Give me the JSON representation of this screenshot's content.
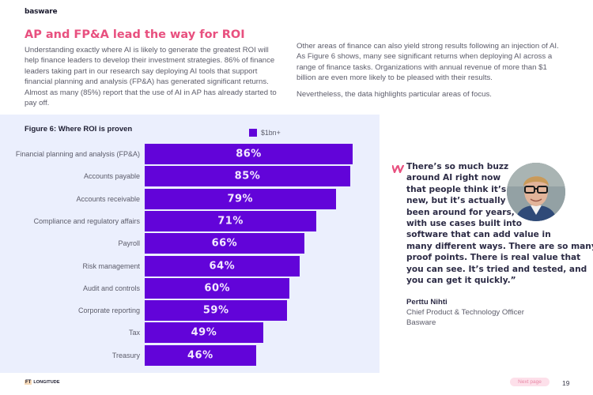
{
  "header": {
    "logo": "basware"
  },
  "section": {
    "title": "AP and FP&A lead the way for ROI",
    "intro": "Understanding exactly where AI is likely to generate the greatest ROI will help finance leaders to develop their investment strategies. 86% of finance leaders taking part in our research say deploying AI tools that support financial planning and analysis (FP&A) has generated significant returns. Almost as many (85%) report that the use of AI in AP has already started to pay off.",
    "right_paragraphs": [
      "Other areas of finance can also yield strong results following an injection of AI. As Figure 6 shows, many see significant returns when deploying AI across a range of finance tasks. Organizations with annual revenue of more than $1 billion are even more likely to be pleased with their results.",
      "Nevertheless, the data highlights particular areas of focus."
    ]
  },
  "chart_data": {
    "type": "bar",
    "orientation": "horizontal",
    "title": "Figure 6: Where ROI is proven",
    "xlabel": "",
    "ylabel": "",
    "xlim": [
      0,
      100
    ],
    "grid": false,
    "legend": {
      "position": "top-center",
      "entries": [
        "$1bn+"
      ]
    },
    "categories": [
      "Financial planning and analysis (FP&A)",
      "Accounts payable",
      "Accounts receivable",
      "Compliance and regulatory affairs",
      "Payroll",
      "Risk management",
      "Audit and controls",
      "Corporate reporting",
      "Tax",
      "Treasury"
    ],
    "series": [
      {
        "name": "$1bn+",
        "color": "#6204d9",
        "values": [
          86,
          85,
          79,
          71,
          66,
          64,
          60,
          59,
          49,
          46
        ]
      }
    ],
    "value_suffix": "%"
  },
  "quote": {
    "lines": [
      "There’s so much buzz",
      "around AI right now",
      "that people think it’s",
      "new, but it’s actually",
      "been around for years,",
      "with use cases built into",
      "software that can add value in",
      "many different ways. There are so many",
      "proof points. There is real value that",
      "you can see. It’s tried and tested, and",
      "you can get it quickly.”"
    ],
    "accent_color": "#e8507f",
    "author": "Perttu Nihti",
    "role": "Chief Product & Technology Officer",
    "organization": "Basware"
  },
  "footer": {
    "partner_mark": "FT",
    "partner_name": "LONGITUDE",
    "next_label": "Next page",
    "page_number": "19"
  }
}
